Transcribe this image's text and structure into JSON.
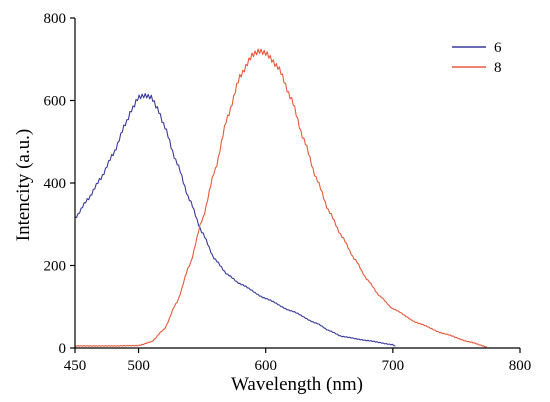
{
  "chart_data": {
    "type": "line",
    "title": "",
    "xlabel": "Wavelength (nm)",
    "ylabel": "Intencity (a.u.)",
    "xlim": [
      450,
      800
    ],
    "ylim": [
      0,
      800
    ],
    "xticks": [
      450,
      500,
      600,
      700,
      800
    ],
    "yticks": [
      0,
      200,
      400,
      600,
      800
    ],
    "grid": false,
    "legend_position": "top-right",
    "series": [
      {
        "name": "6",
        "color": "#3a3a9c",
        "x": [
          450,
          460,
          470,
          480,
          490,
          495,
          500,
          505,
          510,
          515,
          520,
          530,
          540,
          550,
          560,
          570,
          580,
          600,
          620,
          640,
          650,
          660,
          680,
          700,
          703
        ],
        "y": [
          315,
          360,
          410,
          470,
          545,
          580,
          608,
          612,
          608,
          580,
          540,
          450,
          360,
          280,
          215,
          178,
          155,
          120,
          90,
          60,
          42,
          28,
          18,
          8,
          2
        ]
      },
      {
        "name": "8",
        "color": "#e8593c",
        "x": [
          450,
          480,
          500,
          510,
          520,
          530,
          540,
          550,
          560,
          570,
          580,
          590,
          595,
          600,
          610,
          620,
          630,
          640,
          650,
          660,
          670,
          680,
          690,
          700,
          720,
          740,
          760,
          775
        ],
        "y": [
          5,
          5,
          6,
          15,
          45,
          110,
          200,
          310,
          430,
          560,
          660,
          712,
          720,
          715,
          680,
          605,
          505,
          410,
          330,
          270,
          215,
          165,
          125,
          95,
          60,
          35,
          15,
          2
        ]
      }
    ]
  }
}
